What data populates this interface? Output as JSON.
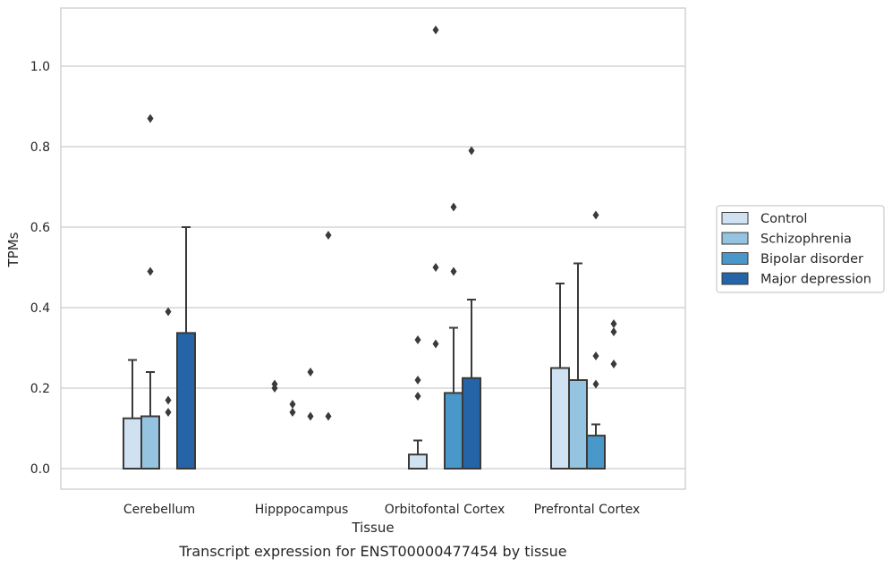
{
  "chart_data": {
    "type": "bar",
    "xlabel": "Tissue",
    "ylabel": "TPMs",
    "caption": "Transcript expression for ENST00000477454 by tissue",
    "ylim": [
      -0.053,
      1.148
    ],
    "yticks": [
      0.0,
      0.2,
      0.4,
      0.6,
      0.8,
      1.0
    ],
    "ytick_labels": [
      "0.0",
      "0.2",
      "0.4",
      "0.6",
      "0.8",
      "1.0"
    ],
    "grid": "horizontal",
    "legend_position": "right",
    "categories": [
      "Cerebellum",
      "Hipppocampus",
      "Orbitofontal Cortex",
      "Prefrontal Cortex"
    ],
    "series": [
      {
        "name": "Control",
        "color": "#d0e1f2",
        "values": [
          0.125,
          0.0,
          0.035,
          0.25
        ],
        "error_upper": [
          0.27,
          null,
          0.07,
          0.46
        ],
        "outliers": [
          [],
          [
            0.21,
            0.2
          ],
          [
            0.32,
            0.22,
            0.18
          ],
          []
        ]
      },
      {
        "name": "Schizophrenia",
        "color": "#94c4df",
        "values": [
          0.13,
          0.0,
          0.0,
          0.22
        ],
        "error_upper": [
          0.24,
          null,
          null,
          0.51
        ],
        "outliers": [
          [
            0.87,
            0.49
          ],
          [
            0.16,
            0.14
          ],
          [
            1.09,
            0.5,
            0.31
          ],
          []
        ]
      },
      {
        "name": "Bipolar disorder",
        "color": "#4a98c9",
        "values": [
          0.0,
          0.0,
          0.188,
          0.082
        ],
        "error_upper": [
          null,
          null,
          0.35,
          0.11
        ],
        "outliers": [
          [
            0.39,
            0.17,
            0.14
          ],
          [
            0.24,
            0.13
          ],
          [
            0.65,
            0.49
          ],
          [
            0.63,
            0.28,
            0.21
          ]
        ]
      },
      {
        "name": "Major depression",
        "color": "#2464a7",
        "values": [
          0.337,
          0.0,
          0.225,
          0.0
        ],
        "error_upper": [
          0.6,
          null,
          0.42,
          null
        ],
        "outliers": [
          [],
          [
            0.58,
            0.13
          ],
          [
            0.79
          ],
          [
            0.36,
            0.34,
            0.26
          ]
        ]
      }
    ]
  }
}
